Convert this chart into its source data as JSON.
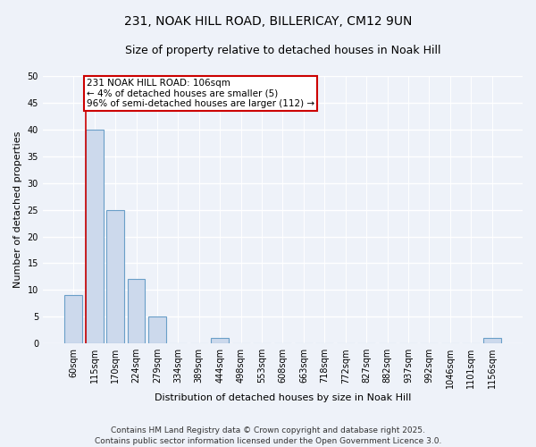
{
  "title1": "231, NOAK HILL ROAD, BILLERICAY, CM12 9UN",
  "title2": "Size of property relative to detached houses in Noak Hill",
  "xlabel": "Distribution of detached houses by size in Noak Hill",
  "ylabel": "Number of detached properties",
  "bin_labels": [
    "60sqm",
    "115sqm",
    "170sqm",
    "224sqm",
    "279sqm",
    "334sqm",
    "389sqm",
    "444sqm",
    "498sqm",
    "553sqm",
    "608sqm",
    "663sqm",
    "718sqm",
    "772sqm",
    "827sqm",
    "882sqm",
    "937sqm",
    "992sqm",
    "1046sqm",
    "1101sqm",
    "1156sqm"
  ],
  "bar_values": [
    9,
    40,
    25,
    12,
    5,
    0,
    0,
    1,
    0,
    0,
    0,
    0,
    0,
    0,
    0,
    0,
    0,
    0,
    0,
    0,
    1
  ],
  "bar_color": "#ccd9ec",
  "bar_edge_color": "#6a9fc8",
  "annotation_text": "231 NOAK HILL ROAD: 106sqm\n← 4% of detached houses are smaller (5)\n96% of semi-detached houses are larger (112) →",
  "annotation_box_color": "#ffffff",
  "annotation_border_color": "#cc0000",
  "ylim": [
    0,
    50
  ],
  "yticks": [
    0,
    5,
    10,
    15,
    20,
    25,
    30,
    35,
    40,
    45,
    50
  ],
  "footer": "Contains HM Land Registry data © Crown copyright and database right 2025.\nContains public sector information licensed under the Open Government Licence 3.0.",
  "background_color": "#eef2f9",
  "grid_color": "#ffffff",
  "red_line_color": "#cc0000",
  "title_fontsize": 10,
  "subtitle_fontsize": 9,
  "axis_label_fontsize": 8,
  "tick_fontsize": 7,
  "footer_fontsize": 6.5,
  "annotation_fontsize": 7.5
}
